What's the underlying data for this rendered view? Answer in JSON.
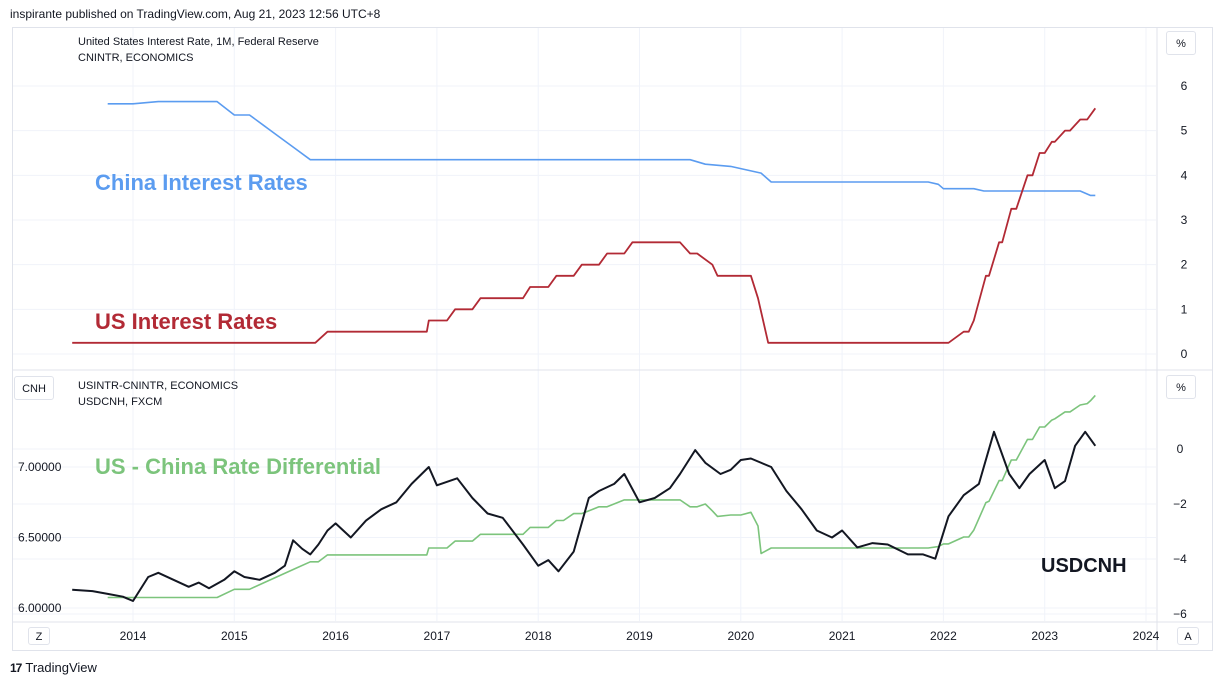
{
  "publisher_line": "inspirante published on TradingView.com, Aug 21, 2023 12:56 UTC+8",
  "brand": {
    "logo": "17",
    "name": "TradingView"
  },
  "controls": {
    "zoom_left": "Z",
    "zoom_right": "A"
  },
  "colors": {
    "china": "#5b9cf0",
    "us": "#b22a35",
    "differential": "#7cc47c",
    "usdcnh": "#131722",
    "grid": "#f0f3fa"
  },
  "top_panel": {
    "legend_line1": "United States Interest Rate, 1M, Federal Reserve",
    "legend_line2": "CNINTR, ECONOMICS",
    "unit": "%",
    "annotation_china": "China Interest Rates",
    "annotation_us": "US Interest Rates",
    "y_ticks": [
      "0",
      "1",
      "2",
      "3",
      "4",
      "5",
      "6"
    ]
  },
  "bottom_panel": {
    "legend_line1": "USINTR-CNINTR, ECONOMICS",
    "legend_line2": "USDCNH, FXCM",
    "unit": "%",
    "currency": "CNH",
    "annotation_diff": "US - China Rate Differential",
    "annotation_usdcnh": "USDCNH",
    "left_ticks": [
      "6.00000",
      "6.50000",
      "7.00000"
    ],
    "right_ticks": [
      "−6",
      "−4",
      "−2",
      "0"
    ]
  },
  "x_ticks": [
    "2014",
    "2015",
    "2016",
    "2017",
    "2018",
    "2019",
    "2020",
    "2021",
    "2022",
    "2023",
    "2024"
  ],
  "chart_data": [
    {
      "type": "line",
      "title": "United States Interest Rate, 1M, Federal Reserve",
      "ylim": [
        0,
        6
      ],
      "series": [
        {
          "name": "CNINTR",
          "x": [
            2013.75,
            2014.0,
            2014.25,
            2014.5,
            2014.83,
            2015.0,
            2015.15,
            2015.3,
            2015.45,
            2015.6,
            2015.75,
            2015.83,
            2016.0,
            2017.0,
            2018.0,
            2018.25,
            2019.0,
            2019.5,
            2019.65,
            2019.9,
            2020.0,
            2020.2,
            2020.3,
            2021.0,
            2021.85,
            2021.95,
            2022.0,
            2022.3,
            2022.4,
            2022.7,
            2023.0,
            2023.35,
            2023.45,
            2023.5
          ],
          "values": [
            5.6,
            5.6,
            5.65,
            5.65,
            5.65,
            5.35,
            5.35,
            5.1,
            4.85,
            4.6,
            4.35,
            4.35,
            4.35,
            4.35,
            4.35,
            4.35,
            4.35,
            4.35,
            4.25,
            4.2,
            4.15,
            4.05,
            3.85,
            3.85,
            3.85,
            3.8,
            3.7,
            3.7,
            3.65,
            3.65,
            3.65,
            3.65,
            3.55,
            3.55
          ]
        },
        {
          "name": "USINTR",
          "x": [
            2013.4,
            2015.8,
            2015.92,
            2016.9,
            2016.92,
            2017.1,
            2017.18,
            2017.35,
            2017.43,
            2017.85,
            2017.92,
            2018.1,
            2018.18,
            2018.35,
            2018.43,
            2018.6,
            2018.68,
            2018.85,
            2018.93,
            2019.4,
            2019.5,
            2019.57,
            2019.72,
            2019.77,
            2020.1,
            2020.17,
            2020.27,
            2022.05,
            2022.2,
            2022.25,
            2022.3,
            2022.33,
            2022.42,
            2022.45,
            2022.55,
            2022.58,
            2022.67,
            2022.72,
            2022.83,
            2022.88,
            2022.95,
            2023.0,
            2023.07,
            2023.1,
            2023.2,
            2023.25,
            2023.35,
            2023.42,
            2023.5
          ],
          "values": [
            0.25,
            0.25,
            0.5,
            0.5,
            0.75,
            0.75,
            1.0,
            1.0,
            1.25,
            1.25,
            1.5,
            1.5,
            1.75,
            1.75,
            2.0,
            2.0,
            2.25,
            2.25,
            2.5,
            2.5,
            2.25,
            2.25,
            2.0,
            1.75,
            1.75,
            1.25,
            0.25,
            0.25,
            0.5,
            0.5,
            0.75,
            1.0,
            1.75,
            1.75,
            2.5,
            2.5,
            3.25,
            3.25,
            4.0,
            4.0,
            4.5,
            4.5,
            4.75,
            4.75,
            5.0,
            5.0,
            5.25,
            5.25,
            5.5
          ]
        }
      ]
    },
    {
      "type": "line",
      "title": "USINTR-CNINTR, ECONOMICS",
      "series": [
        {
          "name": "USDCNH",
          "x": [
            2013.4,
            2013.6,
            2013.75,
            2013.9,
            2014.0,
            2014.15,
            2014.25,
            2014.4,
            2014.55,
            2014.65,
            2014.75,
            2014.9,
            2015.0,
            2015.1,
            2015.25,
            2015.4,
            2015.5,
            2015.58,
            2015.67,
            2015.75,
            2015.83,
            2015.92,
            2016.0,
            2016.15,
            2016.3,
            2016.45,
            2016.6,
            2016.75,
            2016.92,
            2017.0,
            2017.2,
            2017.35,
            2017.5,
            2017.65,
            2017.85,
            2018.0,
            2018.1,
            2018.2,
            2018.35,
            2018.5,
            2018.6,
            2018.75,
            2018.85,
            2019.0,
            2019.15,
            2019.3,
            2019.4,
            2019.55,
            2019.65,
            2019.8,
            2019.9,
            2020.0,
            2020.1,
            2020.3,
            2020.45,
            2020.6,
            2020.75,
            2020.9,
            2021.0,
            2021.15,
            2021.3,
            2021.45,
            2021.65,
            2021.8,
            2021.92,
            2022.05,
            2022.2,
            2022.35,
            2022.5,
            2022.65,
            2022.75,
            2022.85,
            2023.0,
            2023.1,
            2023.2,
            2023.3,
            2023.4,
            2023.5
          ],
          "values": [
            6.13,
            6.12,
            6.1,
            6.08,
            6.05,
            6.22,
            6.25,
            6.2,
            6.15,
            6.18,
            6.14,
            6.2,
            6.26,
            6.22,
            6.2,
            6.25,
            6.3,
            6.48,
            6.42,
            6.38,
            6.45,
            6.55,
            6.6,
            6.5,
            6.62,
            6.7,
            6.75,
            6.88,
            7.0,
            6.87,
            6.92,
            6.78,
            6.67,
            6.64,
            6.45,
            6.3,
            6.34,
            6.26,
            6.4,
            6.78,
            6.83,
            6.88,
            6.95,
            6.75,
            6.78,
            6.85,
            6.95,
            7.12,
            7.03,
            6.95,
            6.98,
            7.05,
            7.06,
            7.0,
            6.83,
            6.7,
            6.55,
            6.5,
            6.55,
            6.43,
            6.46,
            6.45,
            6.38,
            6.38,
            6.35,
            6.65,
            6.8,
            6.88,
            7.25,
            6.95,
            6.85,
            6.95,
            7.05,
            6.85,
            6.9,
            7.15,
            7.25,
            7.15
          ]
        },
        {
          "name": "USINTR-CNINTR",
          "x": [
            2013.75,
            2014.0,
            2014.5,
            2014.83,
            2015.0,
            2015.15,
            2015.3,
            2015.45,
            2015.6,
            2015.75,
            2015.83,
            2015.92,
            2016.0,
            2016.9,
            2016.92,
            2017.1,
            2017.18,
            2017.35,
            2017.43,
            2017.85,
            2017.92,
            2018.1,
            2018.18,
            2018.25,
            2018.35,
            2018.43,
            2018.6,
            2018.68,
            2018.85,
            2018.93,
            2019.4,
            2019.5,
            2019.57,
            2019.65,
            2019.72,
            2019.77,
            2019.9,
            2020.0,
            2020.1,
            2020.17,
            2020.2,
            2020.3,
            2021.0,
            2021.85,
            2021.95,
            2022.0,
            2022.05,
            2022.2,
            2022.25,
            2022.3,
            2022.33,
            2022.42,
            2022.45,
            2022.55,
            2022.58,
            2022.67,
            2022.72,
            2022.83,
            2022.88,
            2022.95,
            2023.0,
            2023.07,
            2023.1,
            2023.2,
            2023.25,
            2023.35,
            2023.42,
            2023.45,
            2023.5
          ],
          "values": [
            -5.4,
            -5.4,
            -5.4,
            -5.4,
            -5.1,
            -5.1,
            -4.85,
            -4.6,
            -4.35,
            -4.1,
            -4.1,
            -3.85,
            -3.85,
            -3.85,
            -3.6,
            -3.6,
            -3.35,
            -3.35,
            -3.1,
            -3.1,
            -2.85,
            -2.85,
            -2.6,
            -2.6,
            -2.35,
            -2.35,
            -2.1,
            -2.1,
            -1.85,
            -1.85,
            -1.85,
            -2.1,
            -2.1,
            -2.0,
            -2.25,
            -2.45,
            -2.4,
            -2.4,
            -2.3,
            -2.8,
            -3.8,
            -3.6,
            -3.6,
            -3.6,
            -3.55,
            -3.45,
            -3.45,
            -3.2,
            -3.2,
            -2.95,
            -2.7,
            -1.95,
            -1.9,
            -1.15,
            -1.15,
            -0.4,
            -0.4,
            0.35,
            0.35,
            0.8,
            0.8,
            1.05,
            1.1,
            1.35,
            1.35,
            1.6,
            1.65,
            1.75,
            1.95
          ]
        }
      ]
    }
  ]
}
